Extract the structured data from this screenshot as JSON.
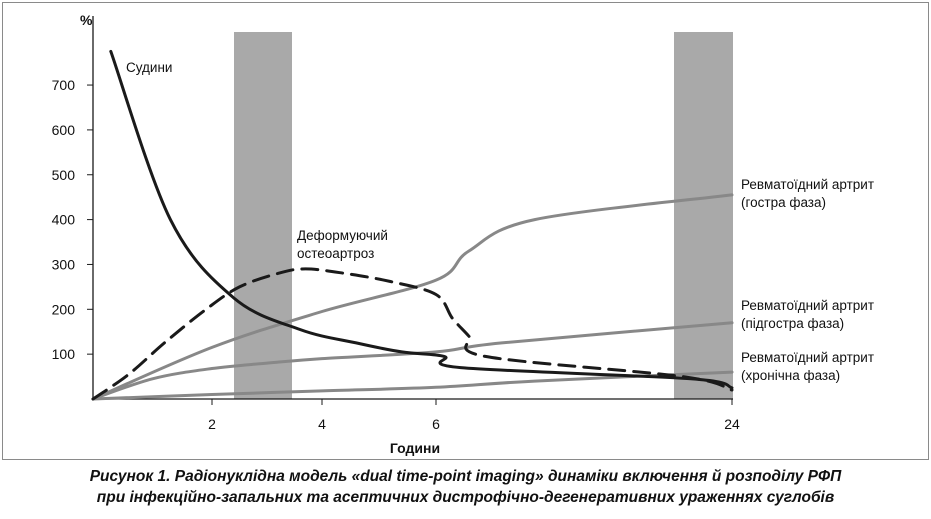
{
  "chart_data": {
    "type": "line",
    "ylabel": "%",
    "xlabel": "Години",
    "x_ticks": [
      {
        "value": 2,
        "label": "2"
      },
      {
        "value": 4,
        "label": "4"
      },
      {
        "value": 6,
        "label": "6"
      },
      {
        "value": 24,
        "label": "24"
      }
    ],
    "y_ticks": [
      100,
      200,
      300,
      400,
      500,
      600,
      700
    ],
    "ylim": [
      0,
      800
    ],
    "grid": false,
    "shaded_bands": [
      {
        "from": 2.4,
        "to": 3.4
      },
      {
        "from": 22,
        "to": 23.5
      }
    ],
    "series": [
      {
        "name": "Судини",
        "style": "solid",
        "color": "#1a1a1a",
        "points": [
          [
            0.3,
            775
          ],
          [
            1.3,
            400
          ],
          [
            2.4,
            225
          ],
          [
            3.6,
            155
          ],
          [
            4.6,
            125
          ],
          [
            5.4,
            105
          ],
          [
            6.5,
            95
          ],
          [
            7.5,
            70
          ],
          [
            21.5,
            45
          ],
          [
            24,
            25
          ]
        ]
      },
      {
        "name": "Деформуючий\nостеоартроз",
        "style": "dashed",
        "color": "#1a1a1a",
        "points": [
          [
            0,
            0
          ],
          [
            0.6,
            55
          ],
          [
            1.2,
            125
          ],
          [
            1.9,
            200
          ],
          [
            2.5,
            250
          ],
          [
            3.2,
            280
          ],
          [
            3.7,
            290
          ],
          [
            4.4,
            280
          ],
          [
            5.2,
            262
          ],
          [
            6.0,
            233
          ],
          [
            7.0,
            180
          ],
          [
            8.0,
            140
          ],
          [
            9.0,
            95
          ],
          [
            21,
            50
          ],
          [
            24,
            20
          ]
        ]
      },
      {
        "name": "Ревматоїдний артрит\n(гостра фаза)",
        "style": "solid",
        "color": "#888888",
        "points": [
          [
            0,
            0
          ],
          [
            2,
            115
          ],
          [
            4,
            195
          ],
          [
            6,
            265
          ],
          [
            8,
            330
          ],
          [
            12,
            400
          ],
          [
            24,
            455
          ]
        ]
      },
      {
        "name": "Ревматоїдний артрит\n(підгостра фаза)",
        "style": "solid",
        "color": "#888888",
        "points": [
          [
            0,
            0
          ],
          [
            1,
            45
          ],
          [
            2,
            68
          ],
          [
            3,
            80
          ],
          [
            4,
            90
          ],
          [
            6,
            105
          ],
          [
            10,
            125
          ],
          [
            24,
            170
          ]
        ]
      },
      {
        "name": "Ревматоїдний артрит\n(хронічна фаза)",
        "style": "solid",
        "color": "#888888",
        "points": [
          [
            0,
            0
          ],
          [
            2,
            10
          ],
          [
            4,
            18
          ],
          [
            6,
            26
          ],
          [
            12,
            40
          ],
          [
            24,
            60
          ]
        ]
      }
    ]
  },
  "caption": {
    "line1": "Рисунок 1. Радіонуклідна модель «dual time-point imaging» динаміки включення й розподілу РФП",
    "line2": "при інфекційно-запальних та асептичних дистрофічно-дегенеративних ураженнях суглобів"
  }
}
